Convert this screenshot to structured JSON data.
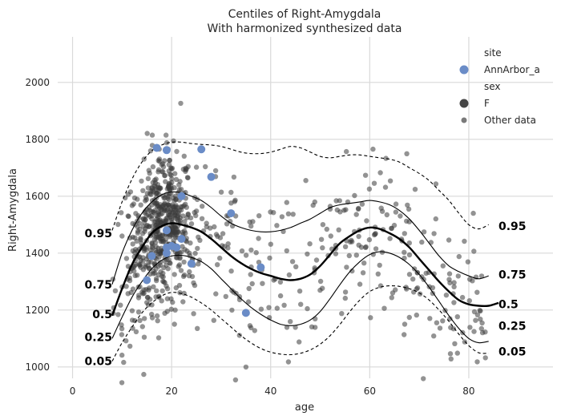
{
  "chart_data": {
    "type": "scatter",
    "title": "Centiles of Right-Amygdala",
    "subtitle": "With harmonized synthesized data",
    "xlabel": "age",
    "ylabel": "Right-Amygdala",
    "xlim": [
      -3,
      97
    ],
    "ylim": [
      960,
      2160
    ],
    "xticks": [
      0,
      20,
      40,
      60,
      80
    ],
    "yticks": [
      1000,
      1200,
      1400,
      1600,
      1800,
      2000
    ],
    "grid": true,
    "legend_placement": "top-right",
    "legend": {
      "site_title": "site",
      "site_entry": "AnnArbor_a",
      "sex_title": "sex",
      "sex_entry": "F",
      "other_entry": "Other data"
    },
    "colors": {
      "site_point": "#6a8cc7",
      "other_point": "#4d4d4d",
      "centile_line": "#000000",
      "grid": "#d9d9d9"
    },
    "centiles": [
      {
        "name": "0.05",
        "style": "dashed",
        "x": [
          8,
          10,
          12,
          14,
          16,
          18,
          20,
          22,
          24,
          26,
          28,
          30,
          32,
          34,
          36,
          38,
          40,
          42,
          44,
          46,
          48,
          50,
          52,
          54,
          56,
          58,
          60,
          62,
          64,
          66,
          68,
          70,
          72,
          74,
          76,
          78,
          80,
          82,
          84
        ],
        "y": [
          1020,
          1085,
          1140,
          1190,
          1225,
          1250,
          1262,
          1258,
          1245,
          1225,
          1200,
          1170,
          1140,
          1110,
          1085,
          1065,
          1052,
          1045,
          1043,
          1048,
          1060,
          1080,
          1110,
          1150,
          1195,
          1235,
          1265,
          1280,
          1285,
          1283,
          1275,
          1260,
          1235,
          1200,
          1160,
          1115,
          1075,
          1050,
          1048
        ]
      },
      {
        "name": "0.25",
        "style": "solid",
        "x": [
          8,
          10,
          12,
          14,
          16,
          18,
          20,
          22,
          24,
          26,
          28,
          30,
          32,
          34,
          36,
          38,
          40,
          42,
          44,
          46,
          48,
          50,
          52,
          54,
          56,
          58,
          60,
          62,
          64,
          66,
          68,
          70,
          72,
          74,
          76,
          78,
          80,
          82,
          84
        ],
        "y": [
          1100,
          1175,
          1245,
          1300,
          1345,
          1375,
          1390,
          1392,
          1385,
          1370,
          1345,
          1310,
          1275,
          1240,
          1210,
          1185,
          1165,
          1150,
          1145,
          1150,
          1165,
          1195,
          1240,
          1290,
          1335,
          1370,
          1395,
          1405,
          1400,
          1385,
          1360,
          1325,
          1280,
          1230,
          1180,
          1135,
          1100,
          1085,
          1090
        ]
      },
      {
        "name": "0.5",
        "style": "bold",
        "x": [
          8,
          10,
          12,
          14,
          16,
          18,
          20,
          22,
          24,
          26,
          28,
          30,
          32,
          34,
          36,
          38,
          40,
          42,
          44,
          46,
          48,
          50,
          52,
          54,
          56,
          58,
          60,
          62,
          64,
          66,
          68,
          70,
          72,
          74,
          76,
          78,
          80,
          82,
          84,
          86
        ],
        "y": [
          1180,
          1275,
          1360,
          1420,
          1470,
          1495,
          1505,
          1500,
          1490,
          1475,
          1450,
          1420,
          1390,
          1365,
          1345,
          1330,
          1320,
          1310,
          1305,
          1310,
          1325,
          1355,
          1395,
          1435,
          1460,
          1480,
          1490,
          1485,
          1470,
          1450,
          1420,
          1380,
          1340,
          1300,
          1265,
          1235,
          1220,
          1215,
          1215,
          1225
        ]
      },
      {
        "name": "0.75",
        "style": "solid",
        "x": [
          8,
          10,
          12,
          14,
          16,
          18,
          20,
          22,
          24,
          26,
          28,
          30,
          32,
          34,
          36,
          38,
          40,
          42,
          44,
          46,
          48,
          50,
          52,
          54,
          56,
          58,
          60,
          62,
          64,
          66,
          68,
          70,
          72,
          74,
          76,
          78,
          80,
          82,
          84
        ],
        "y": [
          1290,
          1400,
          1480,
          1540,
          1580,
          1605,
          1615,
          1612,
          1600,
          1585,
          1560,
          1530,
          1505,
          1490,
          1480,
          1475,
          1475,
          1480,
          1490,
          1505,
          1520,
          1540,
          1560,
          1570,
          1575,
          1580,
          1585,
          1580,
          1570,
          1550,
          1520,
          1480,
          1435,
          1390,
          1355,
          1335,
          1320,
          1310,
          1320
        ]
      },
      {
        "name": "0.95",
        "style": "dashed",
        "x": [
          8,
          10,
          12,
          14,
          16,
          18,
          20,
          22,
          24,
          26,
          28,
          30,
          32,
          34,
          36,
          38,
          40,
          42,
          44,
          46,
          48,
          50,
          52,
          54,
          56,
          58,
          60,
          62,
          64,
          66,
          68,
          70,
          72,
          74,
          76,
          78,
          80,
          82,
          84
        ],
        "y": [
          1480,
          1580,
          1660,
          1720,
          1760,
          1780,
          1790,
          1790,
          1785,
          1782,
          1780,
          1775,
          1765,
          1755,
          1750,
          1750,
          1755,
          1765,
          1775,
          1770,
          1755,
          1740,
          1735,
          1740,
          1745,
          1745,
          1740,
          1735,
          1730,
          1720,
          1700,
          1680,
          1655,
          1620,
          1585,
          1540,
          1500,
          1485,
          1500
        ]
      }
    ],
    "centile_labels": {
      "left": [
        {
          "text": "0.95",
          "y": 1470
        },
        {
          "text": "0.75",
          "y": 1290
        },
        {
          "text": "0.5",
          "y": 1185
        },
        {
          "text": "0.25",
          "y": 1105
        },
        {
          "text": "0.05",
          "y": 1020
        }
      ],
      "right": [
        {
          "text": "0.95",
          "y": 1495
        },
        {
          "text": "0.75",
          "y": 1325
        },
        {
          "text": "0.5",
          "y": 1220
        },
        {
          "text": "0.25",
          "y": 1145
        },
        {
          "text": "0.05",
          "y": 1055
        }
      ]
    },
    "site_points": [
      {
        "x": 17,
        "y": 1770
      },
      {
        "x": 19,
        "y": 1762
      },
      {
        "x": 26,
        "y": 1765
      },
      {
        "x": 28,
        "y": 1668
      },
      {
        "x": 22,
        "y": 1600
      },
      {
        "x": 32,
        "y": 1540
      },
      {
        "x": 19,
        "y": 1420
      },
      {
        "x": 20,
        "y": 1425
      },
      {
        "x": 21,
        "y": 1420
      },
      {
        "x": 19,
        "y": 1400
      },
      {
        "x": 16,
        "y": 1390
      },
      {
        "x": 22,
        "y": 1450
      },
      {
        "x": 24,
        "y": 1363
      },
      {
        "x": 38,
        "y": 1350
      },
      {
        "x": 15,
        "y": 1305
      },
      {
        "x": 35,
        "y": 1190
      },
      {
        "x": 19,
        "y": 1480
      }
    ]
  }
}
